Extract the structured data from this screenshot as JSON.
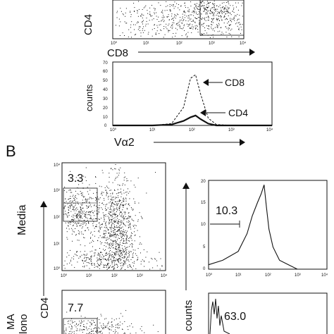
{
  "figure": {
    "panel_b_label": "B"
  },
  "chart_data": [
    {
      "type": "scatter",
      "panel": "A-top",
      "xlabel": "CD8",
      "ylabel": "CD4",
      "log_scale": true,
      "xlim": [
        1,
        10000
      ],
      "ylim": [
        1,
        10000
      ],
      "x_ticks": [
        "10⁰",
        "10¹",
        "10²",
        "10³",
        "10⁴"
      ],
      "gate": {
        "xmin": 140,
        "xmax": 2200
      }
    },
    {
      "type": "line",
      "panel": "A-hist",
      "xlabel": "Vα2",
      "ylabel": "counts",
      "log_scale_x": true,
      "xlim": [
        1,
        10000
      ],
      "ylim": [
        0,
        70
      ],
      "x_ticks": [
        "10⁰",
        "10¹",
        "10²",
        "10³",
        "10⁴"
      ],
      "y_ticks": [
        "0",
        "10",
        "20",
        "30",
        "40",
        "50",
        "60",
        "70"
      ],
      "series": [
        {
          "name": "CD8",
          "style": "dashed",
          "x": [
            1,
            10,
            30,
            60,
            90,
            120,
            160,
            250,
            400,
            1000,
            10000
          ],
          "values": [
            0,
            0,
            2,
            20,
            52,
            56,
            35,
            8,
            1,
            0,
            0
          ]
        },
        {
          "name": "CD4",
          "style": "solid",
          "x": [
            1,
            10,
            30,
            60,
            90,
            120,
            160,
            250,
            400,
            1000,
            10000
          ],
          "values": [
            0,
            0,
            1,
            5,
            9,
            11,
            7,
            2,
            0,
            0,
            0
          ]
        }
      ]
    },
    {
      "type": "scatter",
      "panel": "B-media-dot",
      "row_label": "Media",
      "ylabel": "CD4",
      "log_scale": true,
      "xlim": [
        1,
        10000
      ],
      "ylim": [
        1,
        10000
      ],
      "x_ticks": [
        "10⁰",
        "10¹",
        "10²",
        "10³",
        "10⁴"
      ],
      "y_ticks": [
        "10⁰",
        "10¹",
        "10²",
        "10³",
        "10⁴"
      ],
      "gate_percent": "3.3"
    },
    {
      "type": "line",
      "panel": "B-media-hist",
      "ylabel": "counts",
      "log_scale_x": true,
      "xlim": [
        1,
        10000
      ],
      "ylim": [
        0,
        20
      ],
      "x_ticks": [
        "10⁰",
        "10¹",
        "10²",
        "10³",
        "10⁴"
      ],
      "y_ticks": [
        "0",
        "5",
        "10",
        "15",
        "20"
      ],
      "marker_percent": "10.3",
      "series": [
        {
          "x": [
            1,
            3,
            10,
            20,
            30,
            45,
            60,
            75,
            90,
            110,
            150,
            250,
            500,
            1000,
            10000
          ],
          "values": [
            1,
            2,
            4,
            8,
            12,
            15,
            17,
            19,
            14,
            9,
            5,
            2,
            1,
            0,
            0
          ]
        }
      ]
    },
    {
      "type": "scatter",
      "panel": "B-pma-dot",
      "row_label": "MA\nlono",
      "gate_percent": "7.7"
    },
    {
      "type": "line",
      "panel": "B-pma-hist",
      "marker_percent": "63.0"
    }
  ]
}
